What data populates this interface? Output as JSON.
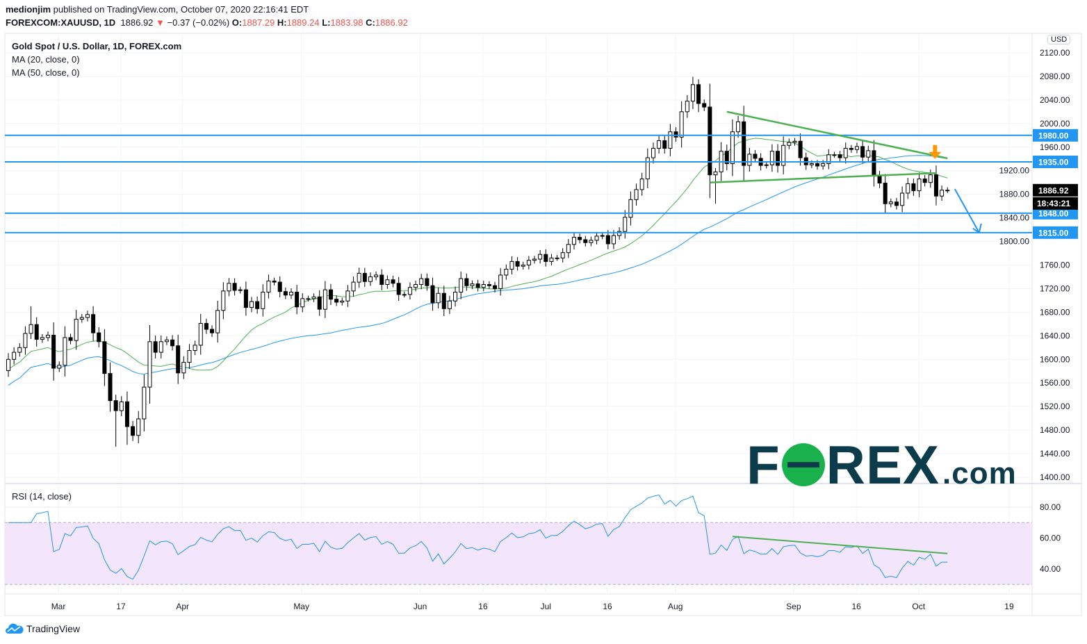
{
  "header": {
    "author": "medionjim",
    "published": "published on TradingView.com, October 07, 2020 22:16:41 EDT",
    "symbol": "FOREXCOM:XAUUSD, 1D",
    "last": "1886.92",
    "change": "−0.37 (−0.02%)",
    "o_label": "O:",
    "o": "1887.29",
    "h_label": "H:",
    "h": "1889.24",
    "l_label": "L:",
    "l": "1883.98",
    "c_label": "C:",
    "c": "1886.92"
  },
  "legend": {
    "title": "Gold Spot / U.S. Dollar, 1D, FOREX.com",
    "ma20": "MA (20, close, 0)",
    "ma50": "MA (50, close, 0)",
    "rsi": "RSI (14, close)"
  },
  "currency": "USD",
  "watermark": {
    "f": "F",
    "rex": "REX",
    "com": ".com"
  },
  "footer": {
    "brand": "TradingView"
  },
  "colors": {
    "ma20": "#4caf50",
    "ma50": "#2196f3",
    "level": "#2196f3",
    "trend": "#4caf50",
    "rsi": "#2196f3",
    "arrow_orange": "#ff9800",
    "down": "#ef5350"
  },
  "chart_data": {
    "type": "candlestick",
    "first_open": 1581,
    "closes": [
      1600,
      1612,
      1620,
      1644,
      1659,
      1634,
      1637,
      1641,
      1585,
      1590,
      1637,
      1632,
      1668,
      1671,
      1676,
      1645,
      1630,
      1576,
      1530,
      1513,
      1528,
      1486,
      1471,
      1499,
      1553,
      1630,
      1612,
      1630,
      1633,
      1623,
      1577,
      1595,
      1615,
      1624,
      1661,
      1651,
      1645,
      1683,
      1716,
      1729,
      1717,
      1718,
      1688,
      1698,
      1686,
      1714,
      1733,
      1731,
      1715,
      1709,
      1714,
      1689,
      1703,
      1703,
      1706,
      1685,
      1718,
      1702,
      1697,
      1699,
      1716,
      1731,
      1746,
      1732,
      1740,
      1743,
      1727,
      1735,
      1729,
      1710,
      1710,
      1722,
      1727,
      1737,
      1725,
      1696,
      1712,
      1686,
      1699,
      1714,
      1737,
      1725,
      1728,
      1722,
      1727,
      1725,
      1720,
      1743,
      1753,
      1766,
      1758,
      1760,
      1768,
      1770,
      1778,
      1766,
      1772,
      1772,
      1781,
      1795,
      1807,
      1803,
      1798,
      1802,
      1809,
      1810,
      1796,
      1810,
      1817,
      1841,
      1871,
      1888,
      1906,
      1942,
      1958,
      1971,
      1958,
      1986,
      1977,
      2020,
      2038,
      2066,
      2034,
      2028,
      1913,
      1918,
      1953,
      1932,
      1986,
      2003,
      1929,
      1948,
      1941,
      1929,
      1930,
      1953,
      1929,
      1963,
      1968,
      1970,
      1942,
      1930,
      1932,
      1928,
      1932,
      1947,
      1947,
      1942,
      1958,
      1956,
      1961,
      1943,
      1954,
      1911,
      1899,
      1864,
      1867,
      1861,
      1882,
      1898,
      1886,
      1906,
      1900,
      1913,
      1877,
      1887,
      1887
    ],
    "extremes": [
      {
        "bar": 4,
        "high": 1690
      },
      {
        "bar": 8,
        "low": 1564
      },
      {
        "bar": 19,
        "low": 1452
      },
      {
        "bar": 21,
        "low": 1455
      },
      {
        "bar": 122,
        "high": 2075
      },
      {
        "bar": 125,
        "low": 1864
      }
    ],
    "y_ticks": [
      2120,
      2080,
      2040,
      2000,
      1960,
      1920,
      1880,
      1840,
      1800,
      1760,
      1720,
      1680,
      1640,
      1600,
      1560,
      1520,
      1480,
      1440,
      1400
    ],
    "ylim": [
      1400,
      2120
    ],
    "x_ticks": [
      {
        "label": "Mar",
        "bar": 8.85
      },
      {
        "label": "17",
        "bar": 19.9
      },
      {
        "label": "Apr",
        "bar": 30.8
      },
      {
        "label": "May",
        "bar": 51.8
      },
      {
        "label": "Jun",
        "bar": 72.8
      },
      {
        "label": "16",
        "bar": 83.9
      },
      {
        "label": "Jul",
        "bar": 95
      },
      {
        "label": "16",
        "bar": 105.9
      },
      {
        "label": "Aug",
        "bar": 117.9
      },
      {
        "label": "Sep",
        "bar": 138.8
      },
      {
        "label": "16",
        "bar": 149.9
      },
      {
        "label": "Oct",
        "bar": 160.9
      },
      {
        "label": "19",
        "bar": 176.9
      }
    ],
    "levels": [
      {
        "price": 1980,
        "label": "1980.00"
      },
      {
        "price": 1935,
        "label": "1935.00"
      },
      {
        "price": 1848,
        "label": "1848.00"
      },
      {
        "price": 1815,
        "label": "1815.00"
      }
    ],
    "last_price": {
      "price": 1886.92,
      "label": "1886.92",
      "countdown": "18:43:21"
    },
    "trendlines": [
      {
        "from": [
          127,
          2020
        ],
        "to": [
          166,
          1941
        ]
      },
      {
        "from": [
          124,
          1900
        ],
        "to": [
          164,
          1916
        ]
      }
    ],
    "forecast_arrow": {
      "from": [
        167.3,
        1889
      ],
      "to": [
        171.6,
        1815
      ]
    },
    "signal_arrow": {
      "bar": 163.8,
      "price": 1940
    },
    "rsi": {
      "period": 14,
      "ticks": [
        80,
        60,
        40
      ],
      "band": [
        30,
        70
      ],
      "ylim": [
        25,
        95
      ],
      "trendline": {
        "from": [
          128,
          61
        ],
        "to": [
          166,
          50
        ]
      }
    }
  }
}
